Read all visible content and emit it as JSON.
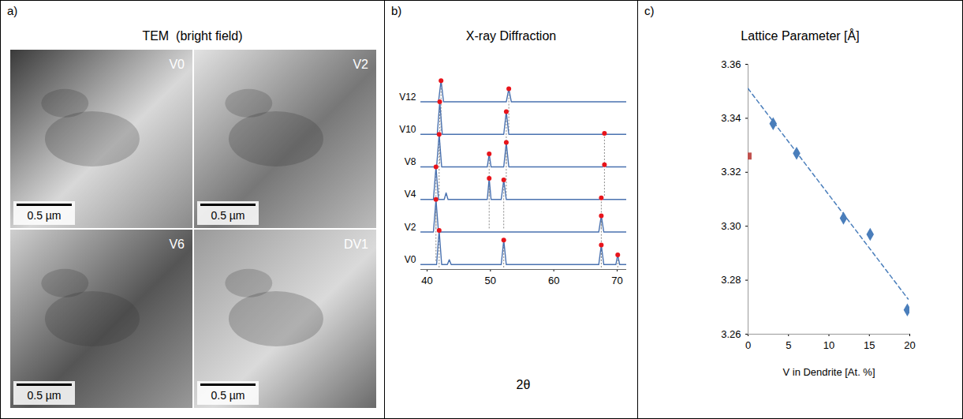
{
  "chart_data": [
    {
      "type": "image",
      "panel_label": "a)",
      "title": "TEM  (bright field)",
      "images": [
        {
          "label": "V0",
          "scale_bar": "0.5 µm"
        },
        {
          "label": "V2",
          "scale_bar": "0.5 µm"
        },
        {
          "label": "V6",
          "scale_bar": "0.5 µm"
        },
        {
          "label": "DV1",
          "scale_bar": "0.5 µm"
        }
      ]
    },
    {
      "type": "line",
      "panel_label": "b)",
      "title": "X-ray Diffraction",
      "xlabel": "2θ",
      "xlim": [
        39,
        71.5
      ],
      "xticks": [
        40,
        50,
        60,
        70
      ],
      "tick_labels": "x",
      "color": "#4a72b0",
      "series": [
        {
          "name": "V0",
          "x": [
            39,
            41.5,
            41.9,
            42.3,
            43.2,
            43.5,
            43.8,
            51.7,
            52.1,
            52.5,
            67.1,
            67.5,
            67.9,
            69.8,
            70.1,
            70.4,
            71.5
          ],
          "values": [
            0,
            0,
            1.05,
            0,
            0,
            0.15,
            0,
            0,
            0.75,
            0,
            0,
            0.6,
            0,
            0,
            0.3,
            0,
            0
          ],
          "markers": {
            "x": [
              41.9,
              52.1,
              67.5,
              70.1
            ],
            "values": [
              1.05,
              0.75,
              0.6,
              0.3
            ]
          }
        },
        {
          "name": "V2",
          "x": [
            39,
            41,
            41.4,
            41.8,
            67.1,
            67.5,
            67.9,
            71.5
          ],
          "values": [
            0,
            0,
            1.0,
            0,
            0,
            0.5,
            0,
            0
          ],
          "markers": {
            "x": [
              41.4,
              67.5
            ],
            "values": [
              1.0,
              0.5
            ]
          }
        },
        {
          "name": "V4",
          "x": [
            39,
            41,
            41.4,
            41.8,
            42.7,
            43,
            43.3,
            49.5,
            49.8,
            50.1,
            51.7,
            52.1,
            52.5,
            67.2,
            67.5,
            67.8,
            71.5
          ],
          "values": [
            0,
            0,
            1.0,
            0,
            0,
            0.2,
            0,
            0,
            0.65,
            0,
            0,
            0.6,
            0,
            0,
            0.05,
            0,
            0
          ],
          "markers": {
            "x": [
              41.4,
              49.8,
              52.1,
              67.5
            ],
            "values": [
              1.0,
              0.65,
              0.6,
              0.05
            ]
          }
        },
        {
          "name": "V8",
          "x": [
            39,
            41.5,
            41.9,
            42.3,
            49.5,
            49.8,
            50.1,
            52.1,
            52.5,
            52.9,
            67.7,
            68,
            68.3,
            71.5
          ],
          "values": [
            0,
            0,
            1.0,
            0,
            0,
            0.4,
            0,
            0,
            0.75,
            0,
            0,
            0.07,
            0,
            0
          ],
          "markers": {
            "x": [
              41.9,
              49.8,
              52.5,
              68
            ],
            "values": [
              1.0,
              0.4,
              0.75,
              0.07
            ]
          }
        },
        {
          "name": "V10",
          "x": [
            39,
            41.6,
            42,
            42.4,
            52.1,
            52.5,
            52.9,
            67.7,
            68,
            68.3,
            71.5
          ],
          "values": [
            0,
            0,
            1.0,
            0,
            0,
            0.7,
            0,
            0,
            0.03,
            0,
            0
          ],
          "markers": {
            "x": [
              42,
              52.5,
              68
            ],
            "values": [
              1.0,
              0.7,
              0.03
            ]
          }
        },
        {
          "name": "V12",
          "x": [
            39,
            41.8,
            42.2,
            42.6,
            52.5,
            52.9,
            53.3,
            71.5
          ],
          "values": [
            0,
            0,
            0.65,
            0,
            0,
            0.4,
            0,
            0
          ],
          "markers": {
            "x": [
              42.2,
              52.9
            ],
            "values": [
              0.65,
              0.4
            ]
          }
        }
      ]
    },
    {
      "type": "scatter",
      "panel_label": "c)",
      "title": "Lattice Parameter [Å]",
      "xlabel": "V in Dendrite [At. %]",
      "xlim": [
        0,
        20
      ],
      "xticks": [
        0,
        5,
        10,
        15,
        20
      ],
      "ylim": [
        3.26,
        3.36
      ],
      "yticks": [
        3.26,
        3.28,
        {
          "value": 3.3,
          "label": "3.30"
        },
        3.32,
        3.34,
        3.36
      ],
      "series": [
        {
          "color": "#4a7ebb",
          "marker": "diamond",
          "x": [
            3.1,
            6,
            11.8,
            15.1,
            19.7
          ],
          "values": [
            3.338,
            3.327,
            3.303,
            3.297,
            3.269
          ]
        },
        {
          "color": "#c0504d",
          "marker": "square",
          "x": [
            0
          ],
          "values": [
            3.326
          ]
        },
        {
          "type": "line",
          "line_style": "dashed",
          "color": "#4a7ebb",
          "x": [
            0,
            19.8
          ],
          "values": [
            3.351,
            3.273
          ]
        }
      ]
    }
  ]
}
